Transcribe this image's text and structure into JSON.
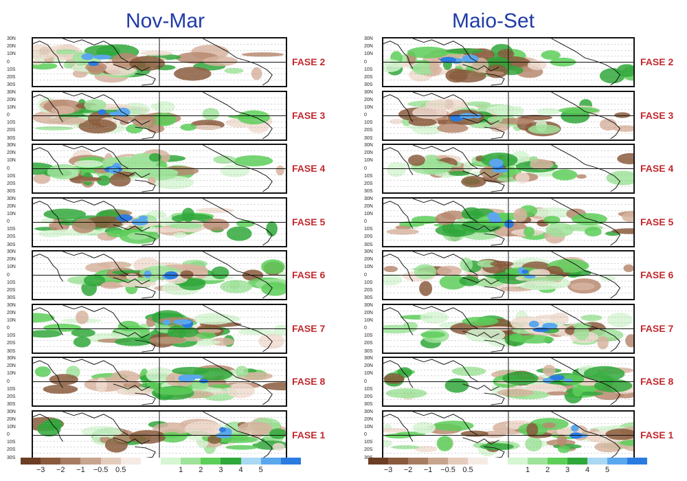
{
  "columns": [
    {
      "title": "Nov-Mar",
      "phases": [
        "FASE 2",
        "FASE 3",
        "FASE 4",
        "FASE 5",
        "FASE 6",
        "FASE 7",
        "FASE 8",
        "FASE 1"
      ]
    },
    {
      "title": "Maio-Set",
      "phases": [
        "FASE 2",
        "FASE 3",
        "FASE 4",
        "FASE 5",
        "FASE 6",
        "FASE 7",
        "FASE 8",
        "FASE 1"
      ]
    }
  ],
  "lat_labels": [
    "30N",
    "20N",
    "10N",
    "0",
    "10S",
    "20S",
    "30S"
  ],
  "colorbar": {
    "colors": [
      "#6b3d24",
      "#8a5a3c",
      "#a67d62",
      "#c7a48e",
      "#e4ccbd",
      "#f6ebe4",
      "#ffffff",
      "#d6f5d2",
      "#9fe39a",
      "#5ccf58",
      "#2fa83a",
      "#a8d8f3",
      "#5aa7ee",
      "#2a7be0"
    ],
    "ticks": [
      "−3",
      "−2",
      "−1",
      "−0.5",
      "0.5",
      "1",
      "2",
      "3",
      "4",
      "5"
    ]
  }
}
